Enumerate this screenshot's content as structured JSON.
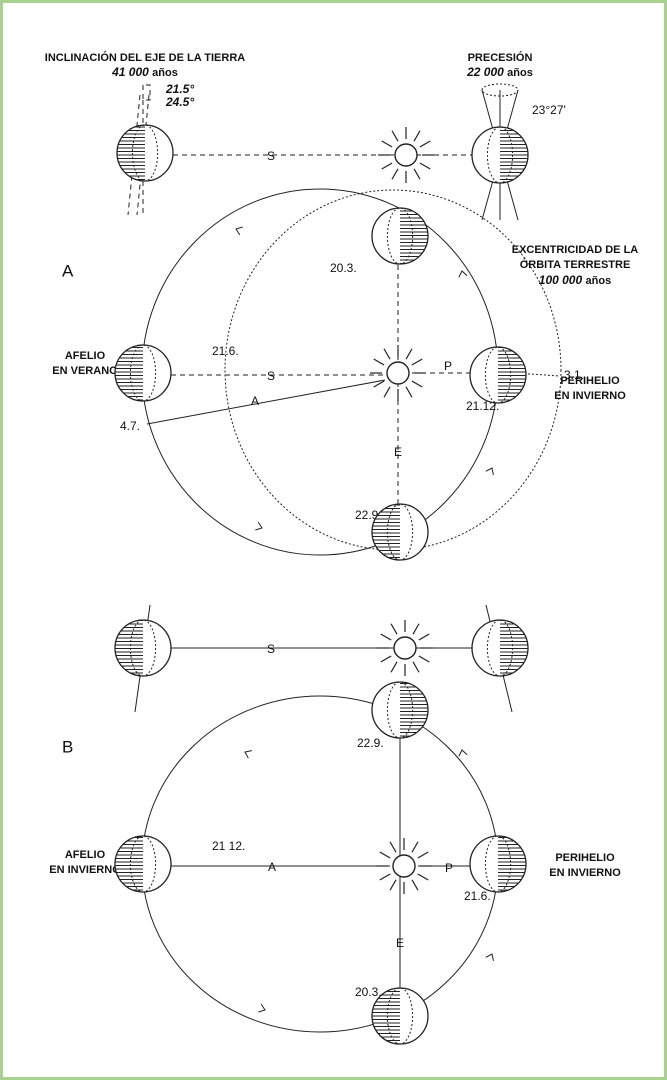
{
  "top": {
    "tilt": {
      "title": "INCLINACIÓN DEL EJE DE LA TIERRA",
      "period": "41 000",
      "period_unit": "años",
      "angles": [
        "21.5°",
        "24.5°"
      ]
    },
    "precession": {
      "title": "PRECESIÓN",
      "period": "22 000",
      "period_unit": "años",
      "angle": "23°27'"
    },
    "line_label": "S"
  },
  "panel_a": {
    "letter": "A",
    "eccentricity": {
      "lines": [
        "EXCENTRICIDAD DE LA",
        "ÓRBITA TERRESTRE"
      ],
      "period": "100 000",
      "period_unit": "años"
    },
    "dates": {
      "top": "20.3.",
      "left": "21.6.",
      "right_top": "3.1.",
      "right": "21.12.",
      "left_bottom": "4.7.",
      "bottom": "22.9."
    },
    "aphelion": [
      "AFELIO",
      "EN VERANO"
    ],
    "perihelion": [
      "PERIHELIO",
      "EN INVIERNO"
    ],
    "axis_labels": {
      "s": "S",
      "p": "P",
      "a": "A",
      "e": "E"
    }
  },
  "middle": {
    "line_label": "S"
  },
  "panel_b": {
    "letter": "B",
    "dates": {
      "top": "22.9.",
      "left": "21 12.",
      "right": "21.6.",
      "bottom": "20.3."
    },
    "aphelion": [
      "AFELIO",
      "EN INVIERNO"
    ],
    "perihelion": [
      "PERIHELIO",
      "EN INVIERNO"
    ],
    "axis_labels": {
      "a": "A",
      "p": "P",
      "e": "E"
    }
  }
}
